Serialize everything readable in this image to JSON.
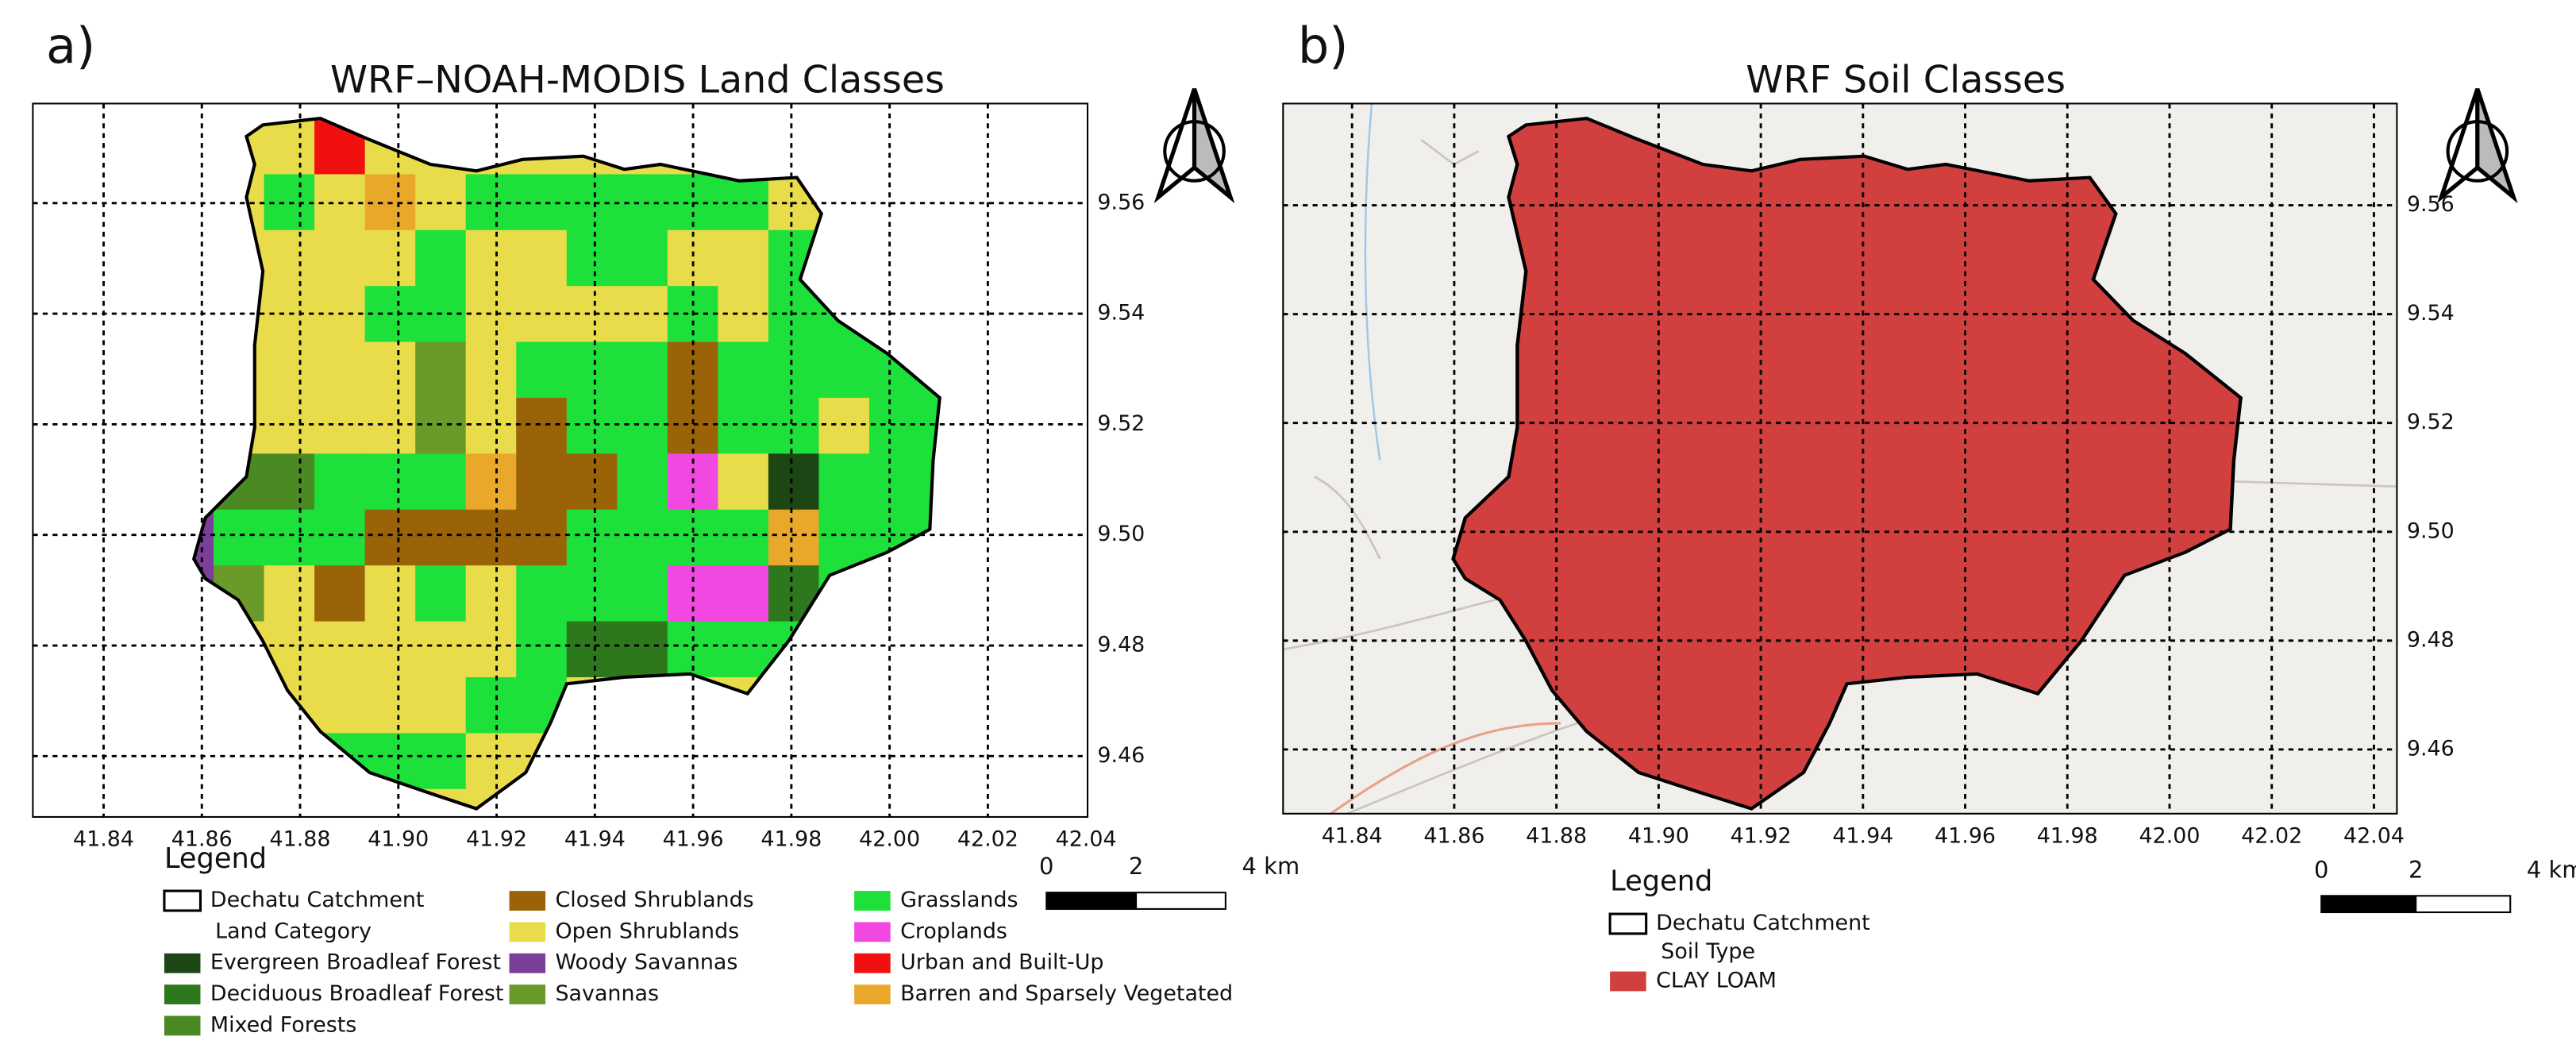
{
  "panels": [
    {
      "label": "a)",
      "title": "WRF–NOAH-MODIS Land Classes",
      "xlim": [
        41.8256,
        42.0403
      ],
      "ylim": [
        9.449,
        9.578
      ],
      "xticks": [
        41.84,
        41.86,
        41.88,
        {
          "value": 41.9,
          "label": "41.90"
        },
        41.92,
        41.94,
        41.96,
        41.98,
        {
          "value": 42,
          "label": "42.00"
        },
        42.02,
        42.04
      ],
      "yticks": [
        9.46,
        9.48,
        {
          "value": 9.5,
          "label": "9.50"
        },
        9.52,
        9.54,
        9.56
      ],
      "legend": {
        "title": "Legend",
        "boundary": "Dechatu Catchment",
        "group": "Land Category",
        "items": [
          {
            "name": "Evergreen Broadleaf Forest",
            "color": "#1c4614"
          },
          {
            "name": "Deciduous Broadleaf Forest",
            "color": "#2d771d"
          },
          {
            "name": "Mixed Forests",
            "color": "#4b8a22"
          },
          {
            "name": "Closed Shrublands",
            "color": "#9a6308"
          },
          {
            "name": "Open Shrublands",
            "color": "#e8dc4a"
          },
          {
            "name": "Woody Savannas",
            "color": "#7b3f99"
          },
          {
            "name": "Savannas",
            "color": "#6a9a2a"
          },
          {
            "name": "Grasslands",
            "color": "#1ee03a"
          },
          {
            "name": "Croplands",
            "color": "#f048e0"
          },
          {
            "name": "Urban and Built-Up",
            "color": "#f01010"
          },
          {
            "name": "Barren and Sparsely Vegetated",
            "color": "#eaa82a"
          }
        ]
      },
      "scale_bar": [
        0,
        2,
        {
          "value": 4,
          "label": "4 km"
        }
      ]
    },
    {
      "label": "b)",
      "title": "WRF Soil Classes",
      "xlim": [
        41.8265,
        42.0445
      ],
      "ylim": [
        9.4482,
        9.5787
      ],
      "xticks": [
        41.84,
        41.86,
        41.88,
        {
          "value": 41.9,
          "label": "41.90"
        },
        41.92,
        41.94,
        41.96,
        41.98,
        {
          "value": 42,
          "label": "42.00"
        },
        42.02,
        42.04
      ],
      "yticks": [
        9.46,
        9.48,
        {
          "value": 9.5,
          "label": "9.50"
        },
        9.52,
        9.54,
        9.56
      ],
      "legend": {
        "title": "Legend",
        "boundary": "Dechatu Catchment",
        "group": "Soil Type",
        "items": [
          {
            "name": "CLAY LOAM",
            "color": "#d23f3f"
          }
        ]
      },
      "scale_bar": [
        0,
        2,
        {
          "value": 4,
          "label": "4 km"
        }
      ]
    }
  ]
}
